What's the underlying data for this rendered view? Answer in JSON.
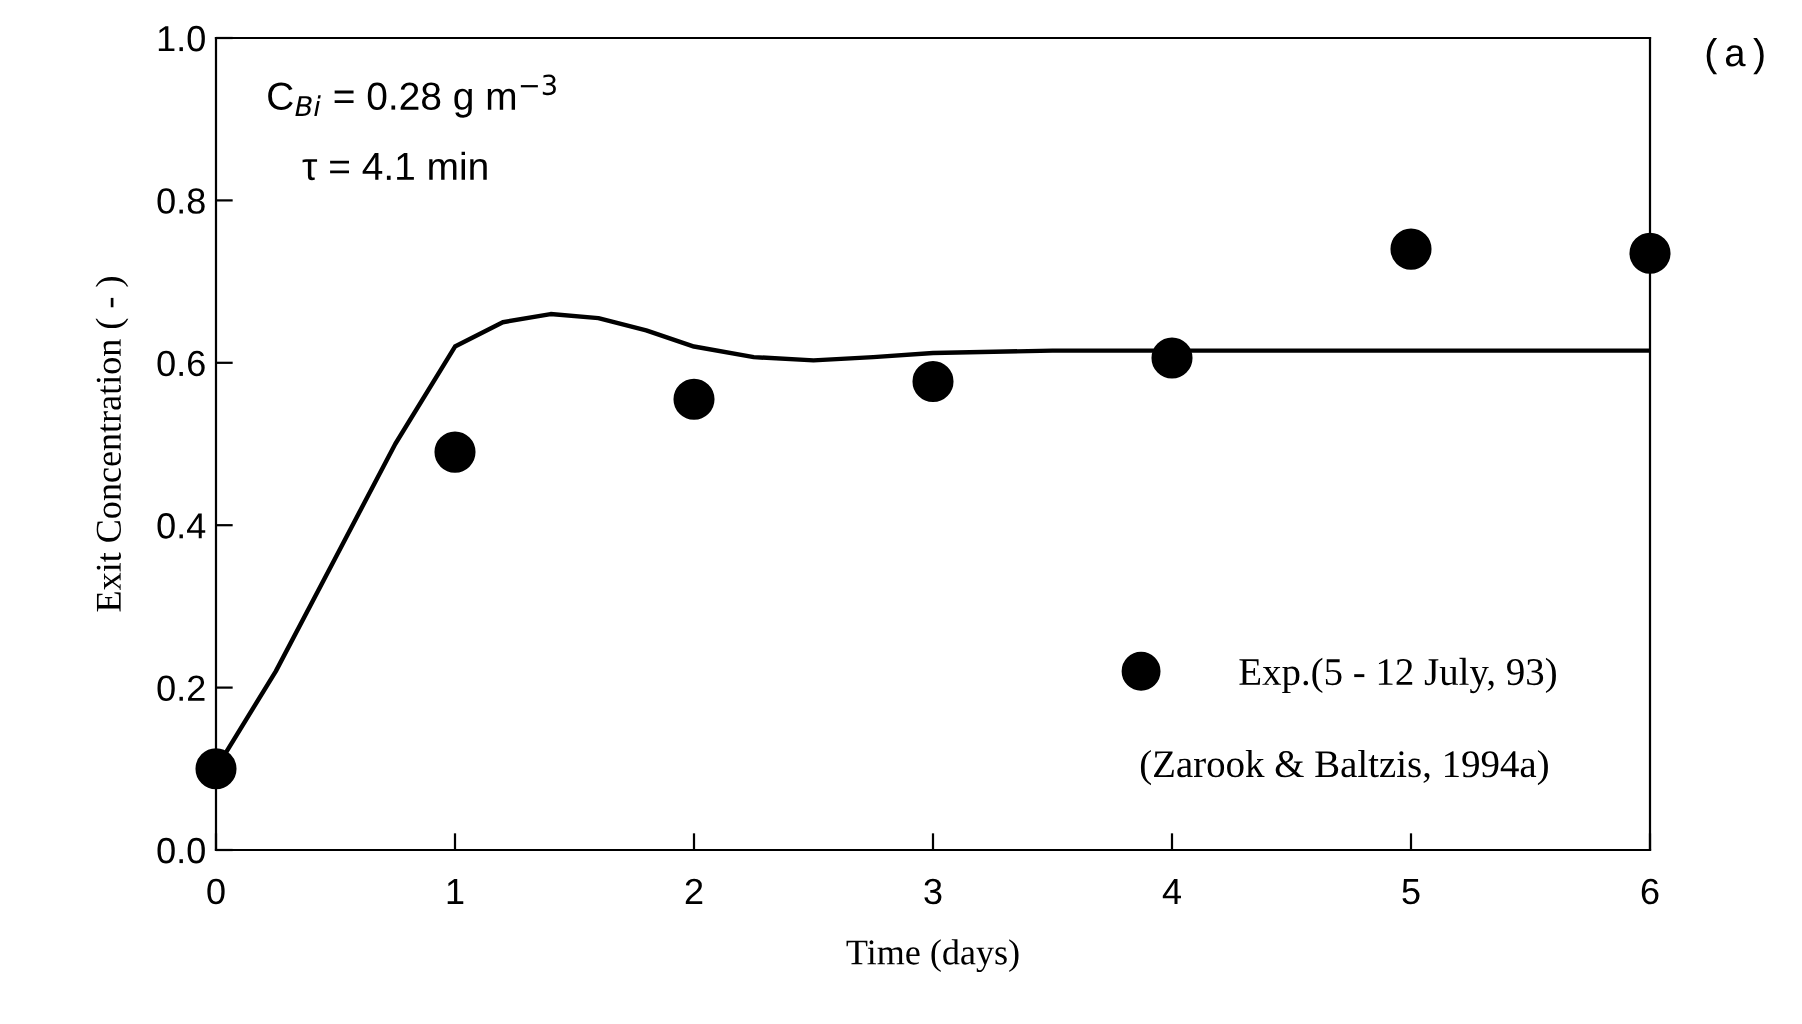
{
  "chart_data": {
    "type": "scatter",
    "xlabel": "Time (days)",
    "ylabel": "Exit Concentration ( - )",
    "xlim": [
      0,
      6
    ],
    "ylim": [
      0,
      1.0
    ],
    "xticks": [
      0,
      1,
      2,
      3,
      4,
      5,
      6
    ],
    "yticks": [
      {
        "value": 0,
        "label": "0.0"
      },
      0.2,
      0.4,
      0.6,
      0.8,
      {
        "value": 1.0,
        "label": "1.0"
      }
    ],
    "grid": false,
    "legend": "bottom right",
    "series": [
      {
        "name": "Exp.(5 - 12 July, 93)",
        "color": "#000000",
        "marker": "circle",
        "x": [
          0,
          1,
          2,
          3,
          4,
          5,
          6
        ],
        "values": [
          0.1,
          0.49,
          0.555,
          0.577,
          0.606,
          0.74,
          0.735
        ]
      },
      {
        "type": "line",
        "color": "#000000",
        "line_style": "solid",
        "x": [
          0,
          0.25,
          0.5,
          0.75,
          1.0,
          1.2,
          1.4,
          1.6,
          1.8,
          2.0,
          2.25,
          2.5,
          2.75,
          3.0,
          3.5,
          4,
          5,
          6
        ],
        "values": [
          0.1,
          0.22,
          0.36,
          0.5,
          0.62,
          0.65,
          0.66,
          0.655,
          0.64,
          0.62,
          0.607,
          0.603,
          0.607,
          0.612,
          0.615,
          0.615,
          0.615,
          0.615
        ]
      }
    ],
    "annotations": [
      "C$_{Bi}$ = 0.28 g m$^{−3}$",
      "τ = 4.1 min",
      "(Zarook & Baltzis, 1994a)",
      "(a)"
    ]
  }
}
